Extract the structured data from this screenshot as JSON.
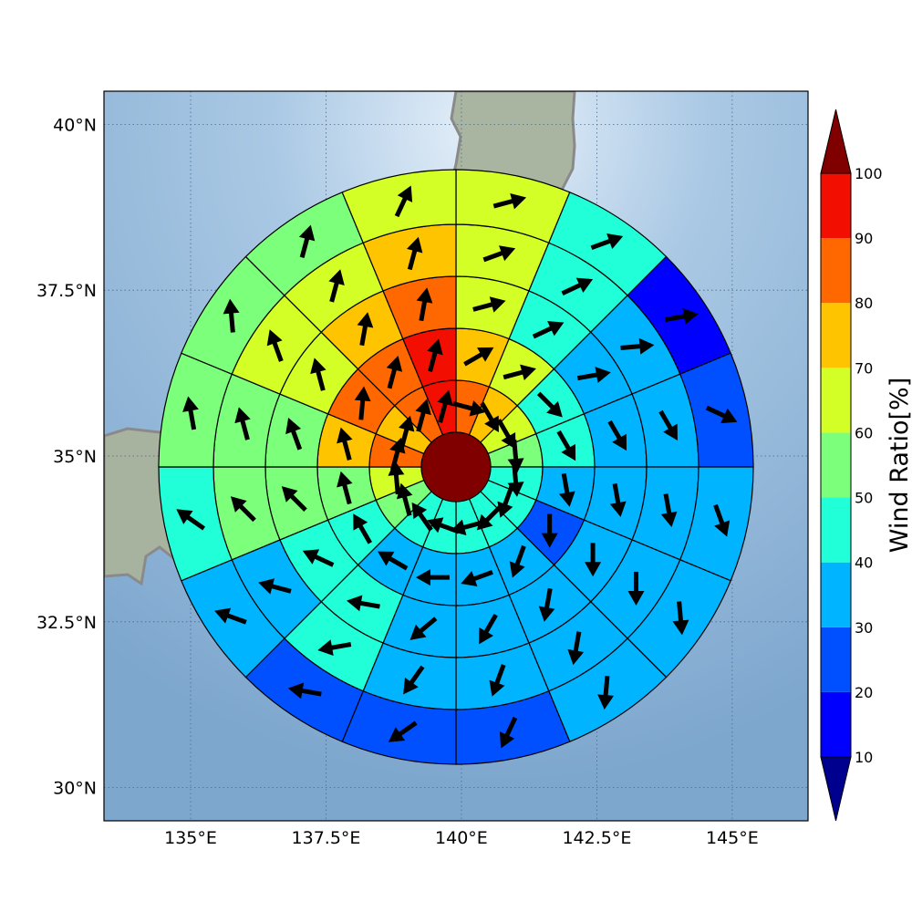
{
  "map": {
    "lon_ticks": [
      "135°E",
      "137.5°E",
      "140°E",
      "142.5°E",
      "145°E"
    ],
    "lat_ticks": [
      "40°N",
      "37.5°N",
      "35°N",
      "32.5°N",
      "30°N"
    ],
    "lon_tick_values": [
      135,
      137.5,
      140,
      142.5,
      145
    ],
    "lat_tick_values": [
      40,
      37.5,
      35,
      32.5,
      30
    ],
    "extent": {
      "lon_min": 133.4,
      "lon_max": 146.4,
      "lat_min": 29.5,
      "lat_max": 40.5
    },
    "grid": true,
    "ocean_color": "#8fb6d9",
    "land_color": "#a8b4a0",
    "coast_color": "#808080"
  },
  "polar_grid": {
    "center_value": 100,
    "sector_count": 16,
    "ring_ratios": [
      [
        85,
        75,
        65,
        55,
        45,
        45,
        45,
        45,
        45,
        45,
        55,
        65,
        85,
        75,
        85,
        95
      ],
      [
        75,
        65,
        45,
        45,
        35,
        25,
        35,
        35,
        35,
        35,
        45,
        55,
        75,
        85,
        85,
        95
      ],
      [
        65,
        45,
        35,
        35,
        35,
        35,
        35,
        35,
        35,
        45,
        45,
        55,
        55,
        65,
        75,
        85
      ],
      [
        65,
        45,
        35,
        35,
        35,
        35,
        35,
        35,
        35,
        45,
        35,
        55,
        55,
        65,
        65,
        75
      ],
      [
        65,
        45,
        15,
        25,
        35,
        35,
        35,
        25,
        25,
        25,
        35,
        45,
        55,
        55,
        55,
        65
      ]
    ],
    "ring_directions": [
      [
        105,
        150,
        150,
        175,
        175,
        200,
        225,
        255,
        290,
        325,
        345,
        355,
        15,
        15,
        15,
        15
      ],
      [
        60,
        75,
        135,
        150,
        170,
        180,
        200,
        250,
        270,
        300,
        330,
        345,
        345,
        5,
        15,
        15
      ],
      [
        75,
        65,
        80,
        150,
        170,
        180,
        190,
        210,
        230,
        280,
        295,
        315,
        340,
        345,
        10,
        10
      ],
      [
        70,
        65,
        85,
        150,
        170,
        180,
        190,
        200,
        215,
        260,
        285,
        315,
        345,
        340,
        15,
        15
      ],
      [
        75,
        70,
        80,
        115,
        160,
        175,
        185,
        205,
        235,
        280,
        290,
        305,
        350,
        355,
        15,
        25
      ]
    ]
  },
  "colorbar": {
    "label": "Wind Ratio[%]",
    "ticks": [
      "10",
      "20",
      "30",
      "40",
      "50",
      "60",
      "70",
      "80",
      "90",
      "100"
    ],
    "bins": [
      {
        "from": 10,
        "to": 20,
        "color": "#0000ff"
      },
      {
        "from": 20,
        "to": 30,
        "color": "#0050ff"
      },
      {
        "from": 30,
        "to": 40,
        "color": "#00b4ff"
      },
      {
        "from": 40,
        "to": 50,
        "color": "#20ffd8"
      },
      {
        "from": 50,
        "to": 60,
        "color": "#7cff7a"
      },
      {
        "from": 60,
        "to": 70,
        "color": "#d4ff26"
      },
      {
        "from": 70,
        "to": 80,
        "color": "#ffc400"
      },
      {
        "from": 80,
        "to": 90,
        "color": "#ff6800"
      },
      {
        "from": 90,
        "to": 100,
        "color": "#f20e00"
      }
    ],
    "under_color": "#00008f",
    "over_color": "#800000"
  }
}
